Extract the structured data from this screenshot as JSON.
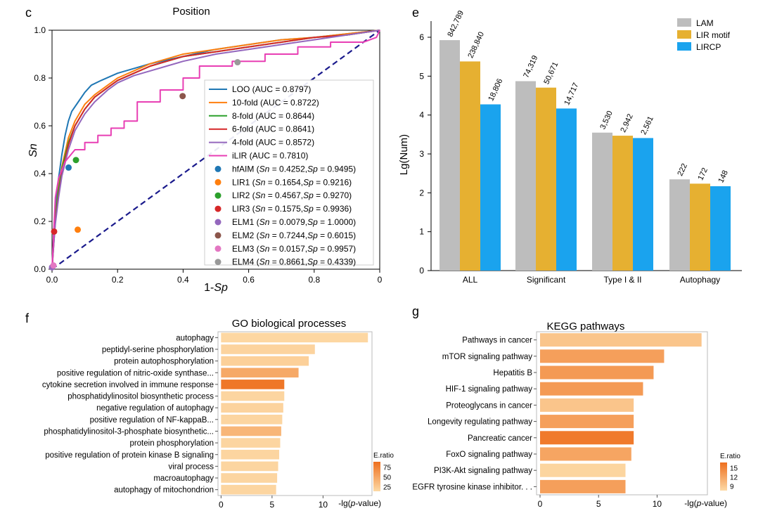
{
  "panels": {
    "c": {
      "letter": "c",
      "chart_data": {
        "type": "line",
        "title": "Position",
        "xlabel": "1-",
        "xlabel_italic": "Sp",
        "ylabel": "Sn",
        "xlim": [
          0,
          1
        ],
        "ylim": [
          0,
          1
        ],
        "xticks": [
          "0.0",
          "0.2",
          "0.4",
          "0.6",
          "0.8",
          "0"
        ],
        "yticks": [
          "0.0",
          "0.2",
          "0.4",
          "0.6",
          "0.8",
          "1.0"
        ],
        "curves": [
          {
            "name": "LOO (AUC = 0.8797)",
            "color": "#1f77b4",
            "points": [
              [
                0,
                0
              ],
              [
                0.005,
                0.15
              ],
              [
                0.01,
                0.25
              ],
              [
                0.02,
                0.38
              ],
              [
                0.03,
                0.48
              ],
              [
                0.04,
                0.56
              ],
              [
                0.05,
                0.62
              ],
              [
                0.06,
                0.66
              ],
              [
                0.08,
                0.7
              ],
              [
                0.1,
                0.74
              ],
              [
                0.12,
                0.77
              ],
              [
                0.15,
                0.79
              ],
              [
                0.2,
                0.82
              ],
              [
                0.25,
                0.84
              ],
              [
                0.3,
                0.86
              ],
              [
                0.4,
                0.89
              ],
              [
                0.5,
                0.92
              ],
              [
                0.6,
                0.94
              ],
              [
                0.7,
                0.96
              ],
              [
                0.8,
                0.97
              ],
              [
                0.9,
                0.985
              ],
              [
                1,
                1
              ]
            ]
          },
          {
            "name": "10-fold (AUC = 0.8722)",
            "color": "#ff7f0e",
            "points": [
              [
                0,
                0
              ],
              [
                0.005,
                0.12
              ],
              [
                0.01,
                0.22
              ],
              [
                0.02,
                0.34
              ],
              [
                0.03,
                0.43
              ],
              [
                0.05,
                0.55
              ],
              [
                0.07,
                0.62
              ],
              [
                0.1,
                0.69
              ],
              [
                0.13,
                0.73
              ],
              [
                0.17,
                0.77
              ],
              [
                0.2,
                0.8
              ],
              [
                0.25,
                0.83
              ],
              [
                0.3,
                0.86
              ],
              [
                0.35,
                0.88
              ],
              [
                0.4,
                0.9
              ],
              [
                0.5,
                0.92
              ],
              [
                0.6,
                0.94
              ],
              [
                0.7,
                0.96
              ],
              [
                0.8,
                0.97
              ],
              [
                0.9,
                0.985
              ],
              [
                1,
                1
              ]
            ]
          },
          {
            "name": "8-fold (AUC = 0.8644)",
            "color": "#2ca02c",
            "points": [
              [
                0,
                0
              ],
              [
                0.005,
                0.12
              ],
              [
                0.01,
                0.22
              ],
              [
                0.02,
                0.33
              ],
              [
                0.03,
                0.42
              ],
              [
                0.05,
                0.53
              ],
              [
                0.07,
                0.6
              ],
              [
                0.1,
                0.67
              ],
              [
                0.13,
                0.72
              ],
              [
                0.17,
                0.76
              ],
              [
                0.2,
                0.79
              ],
              [
                0.25,
                0.82
              ],
              [
                0.3,
                0.85
              ],
              [
                0.35,
                0.87
              ],
              [
                0.4,
                0.89
              ],
              [
                0.5,
                0.91
              ],
              [
                0.6,
                0.93
              ],
              [
                0.7,
                0.95
              ],
              [
                0.8,
                0.97
              ],
              [
                0.9,
                0.98
              ],
              [
                1,
                1
              ]
            ]
          },
          {
            "name": "6-fold (AUC = 0.8641)",
            "color": "#d62728",
            "points": [
              [
                0,
                0
              ],
              [
                0.005,
                0.1
              ],
              [
                0.01,
                0.2
              ],
              [
                0.02,
                0.31
              ],
              [
                0.03,
                0.4
              ],
              [
                0.05,
                0.52
              ],
              [
                0.07,
                0.6
              ],
              [
                0.1,
                0.67
              ],
              [
                0.13,
                0.72
              ],
              [
                0.17,
                0.76
              ],
              [
                0.2,
                0.79
              ],
              [
                0.25,
                0.82
              ],
              [
                0.3,
                0.85
              ],
              [
                0.35,
                0.87
              ],
              [
                0.4,
                0.89
              ],
              [
                0.5,
                0.91
              ],
              [
                0.6,
                0.93
              ],
              [
                0.7,
                0.95
              ],
              [
                0.8,
                0.97
              ],
              [
                0.9,
                0.98
              ],
              [
                1,
                1
              ]
            ]
          },
          {
            "name": "4-fold (AUC = 0.8572)",
            "color": "#9467bd",
            "points": [
              [
                0,
                0
              ],
              [
                0.005,
                0.1
              ],
              [
                0.01,
                0.19
              ],
              [
                0.02,
                0.3
              ],
              [
                0.03,
                0.39
              ],
              [
                0.05,
                0.5
              ],
              [
                0.07,
                0.58
              ],
              [
                0.1,
                0.65
              ],
              [
                0.13,
                0.7
              ],
              [
                0.17,
                0.75
              ],
              [
                0.2,
                0.78
              ],
              [
                0.25,
                0.81
              ],
              [
                0.3,
                0.83
              ],
              [
                0.35,
                0.85
              ],
              [
                0.4,
                0.87
              ],
              [
                0.5,
                0.9
              ],
              [
                0.6,
                0.92
              ],
              [
                0.7,
                0.94
              ],
              [
                0.8,
                0.96
              ],
              [
                0.9,
                0.98
              ],
              [
                1,
                1
              ]
            ]
          },
          {
            "name": "iLIR (AUC = 0.7810)",
            "color": "#e83fb4",
            "step": true,
            "points": [
              [
                0,
                0
              ],
              [
                0.005,
                0.15
              ],
              [
                0.01,
                0.3
              ],
              [
                0.02,
                0.38
              ],
              [
                0.04,
                0.45
              ],
              [
                0.07,
                0.5
              ],
              [
                0.1,
                0.5
              ],
              [
                0.1,
                0.53
              ],
              [
                0.14,
                0.53
              ],
              [
                0.14,
                0.56
              ],
              [
                0.18,
                0.56
              ],
              [
                0.18,
                0.59
              ],
              [
                0.22,
                0.59
              ],
              [
                0.22,
                0.62
              ],
              [
                0.26,
                0.62
              ],
              [
                0.26,
                0.7
              ],
              [
                0.33,
                0.7
              ],
              [
                0.33,
                0.75
              ],
              [
                0.4,
                0.75
              ],
              [
                0.4,
                0.8
              ],
              [
                0.45,
                0.8
              ],
              [
                0.45,
                0.85
              ],
              [
                0.55,
                0.85
              ],
              [
                0.55,
                0.87
              ],
              [
                0.65,
                0.87
              ],
              [
                0.65,
                0.9
              ],
              [
                0.75,
                0.9
              ],
              [
                0.75,
                0.93
              ],
              [
                0.85,
                0.93
              ],
              [
                0.85,
                0.95
              ],
              [
                0.95,
                0.95
              ],
              [
                0.99,
                0.97
              ],
              [
                1,
                1
              ]
            ]
          }
        ],
        "reference_line": {
          "points": [
            [
              0,
              0
            ],
            [
              1,
              1
            ]
          ],
          "color": "#1a1a8c",
          "dashed": true
        },
        "points": [
          {
            "name": "hfAIM",
            "sn": "0.4252",
            "sp": "0.9495",
            "x": 0.0505,
            "y": 0.4252,
            "color": "#1f77b4"
          },
          {
            "name": "LIR1",
            "sn": "0.1654",
            "sp": "0.9216",
            "x": 0.0784,
            "y": 0.1654,
            "color": "#ff7f0e"
          },
          {
            "name": "LIR2",
            "sn": "0.4567",
            "sp": "0.9270",
            "x": 0.073,
            "y": 0.4567,
            "color": "#2ca02c"
          },
          {
            "name": "LIR3",
            "sn": "0.1575",
            "sp": "0.9936",
            "x": 0.0064,
            "y": 0.1575,
            "color": "#d62728"
          },
          {
            "name": "ELM1",
            "sn": "0.0079",
            "sp": "1.0000",
            "x": 0.0,
            "y": 0.0079,
            "color": "#9467bd"
          },
          {
            "name": "ELM2",
            "sn": "0.7244",
            "sp": "0.6015",
            "x": 0.3985,
            "y": 0.7244,
            "color": "#8c564b"
          },
          {
            "name": "ELM3",
            "sn": "0.0157",
            "sp": "0.9957",
            "x": 0.0043,
            "y": 0.0157,
            "color": "#e377c2"
          },
          {
            "name": "ELM4",
            "sn": "0.8661",
            "sp": "0.4339",
            "x": 0.5661,
            "y": 0.8661,
            "color": "#999999"
          }
        ],
        "legend": "bottom-right"
      }
    },
    "e": {
      "letter": "e",
      "chart_data": {
        "type": "bar",
        "ylabel": "Lg(Num)",
        "ylim": [
          0,
          6
        ],
        "yticks": [
          "0",
          "1",
          "2",
          "3",
          "4",
          "5",
          "6"
        ],
        "categories": [
          "ALL",
          "Significant",
          "Type I & II",
          "Autophagy"
        ],
        "series": [
          {
            "name": "LAM",
            "color": "#bdbdbd",
            "counts": [
              842789,
              74319,
              3530,
              222
            ],
            "labels": [
              "842,789",
              "74,319",
              "3,530",
              "222"
            ]
          },
          {
            "name": "LIR motif",
            "color": "#e6b031",
            "counts": [
              238840,
              50671,
              2942,
              172
            ],
            "labels": [
              "238,840",
              "50,671",
              "2,942",
              "172"
            ]
          },
          {
            "name": "LIRCP",
            "color": "#1aa3ee",
            "counts": [
              18806,
              14717,
              2561,
              148
            ],
            "labels": [
              "18,806",
              "14,717",
              "2,561",
              "148"
            ]
          }
        ],
        "legend": "top-right"
      }
    },
    "f": {
      "letter": "f",
      "chart_data": {
        "type": "bar",
        "orientation": "horizontal",
        "title": "GO biological processes",
        "xlabel": "-lg(",
        "xlabel_italic": "p",
        "xlabel_end": "-value)",
        "xticks": [
          {
            "label": "0",
            "value": 0
          },
          {
            "label": "5",
            "value": 5
          },
          {
            "label": "10",
            "value": 10
          }
        ],
        "xlim": [
          -0.3,
          14.8
        ],
        "categories": [
          "autophagy",
          "peptidyl-serine phosphorylation",
          "protein autophosphorylation",
          "positive regulation of nitric-oxide synthase...",
          "cytokine secretion involved in immune response",
          "phosphatidylinositol biosynthetic process",
          "negative regulation of autophagy",
          "positive regulation of NF-kappaB...",
          "phosphatidylinositol-3-phosphate biosynthetic...",
          "protein phosphorylation",
          "positive regulation of protein kinase B signaling",
          "viral process",
          "macroautophagy",
          "autophagy of mitochondrion"
        ],
        "values": [
          14.4,
          9.2,
          8.6,
          7.6,
          6.2,
          6.2,
          6.1,
          6.0,
          5.9,
          5.8,
          5.7,
          5.6,
          5.5,
          5.4
        ],
        "eratio": [
          22,
          24,
          26,
          50,
          80,
          23,
          24,
          23,
          42,
          23,
          23,
          23,
          23,
          23
        ],
        "legend": {
          "title": "E.ratio",
          "ticks": [
            "75",
            "50",
            "25"
          ],
          "min": 20,
          "max": 85,
          "colors": [
            "#fddaa6",
            "#ee6f1e"
          ]
        }
      }
    },
    "g": {
      "letter": "g",
      "chart_data": {
        "type": "bar",
        "orientation": "horizontal",
        "title": "KEGG pathways",
        "xlabel": "-lg(",
        "xlabel_italic": "p",
        "xlabel_end": "-value)",
        "xticks": [
          {
            "label": "0",
            "value": 0
          },
          {
            "label": "5",
            "value": 5
          },
          {
            "label": "10",
            "value": 10
          }
        ],
        "xlim": [
          -0.3,
          14.3
        ],
        "categories": [
          "Pathways in cancer",
          "mTOR signaling pathway",
          "Hepatitis B",
          "HIF-1 signaling pathway",
          "Proteoglycans in cancer",
          "Longevity regulating pathway",
          "Pancreatic cancer",
          "FoxO signaling pathway",
          "PI3K-Akt signaling pathway",
          "EGFR tyrosine kinase inhibitor. . ."
        ],
        "values": [
          13.8,
          10.6,
          9.7,
          8.8,
          8.0,
          8.0,
          8.0,
          7.8,
          7.3,
          7.3
        ],
        "eratio": [
          9,
          12.5,
          13,
          13,
          9,
          12.5,
          16,
          12,
          7.5,
          12.5
        ],
        "legend": {
          "title": "E.ratio",
          "ticks": [
            "15",
            "12",
            "9"
          ],
          "min": 7,
          "max": 17,
          "colors": [
            "#fddaa6",
            "#ee6f1e"
          ]
        }
      }
    }
  }
}
